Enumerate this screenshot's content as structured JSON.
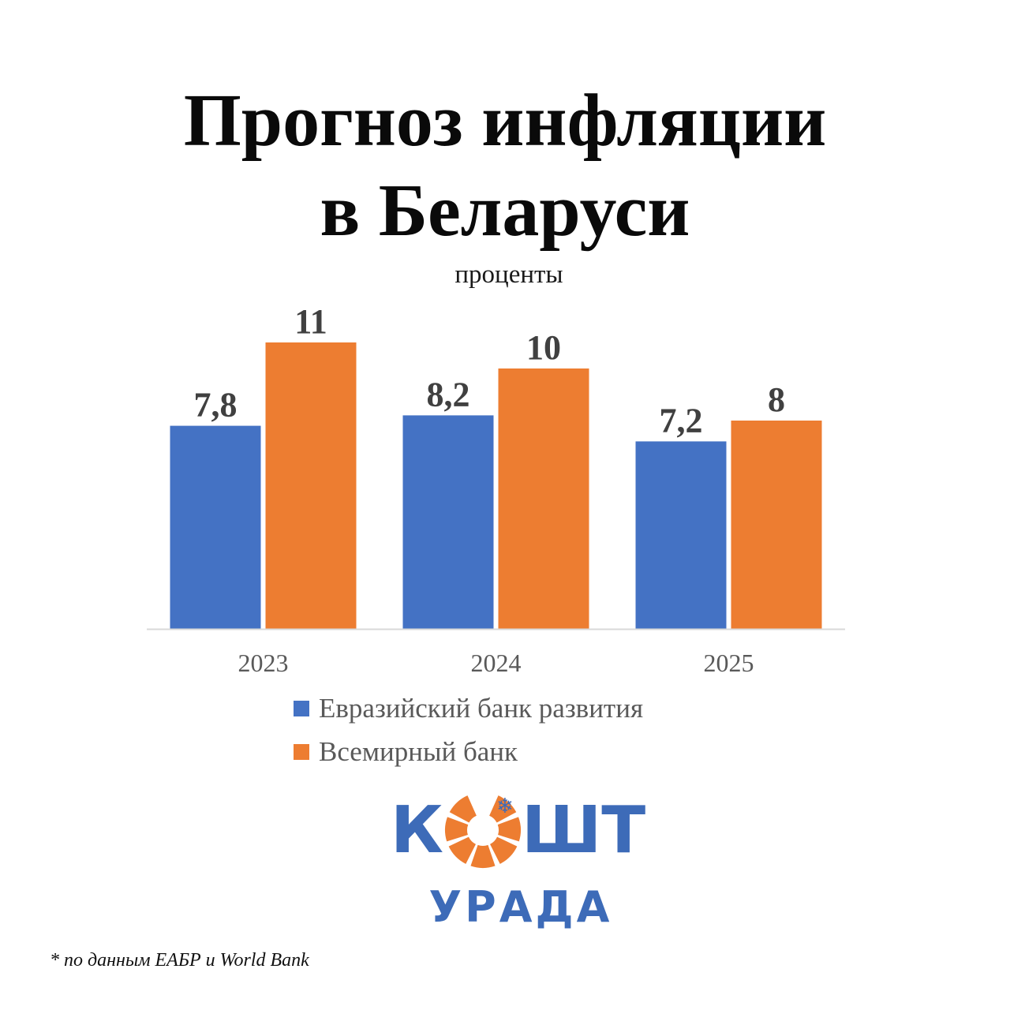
{
  "title_line1": "Прогноз инфляции",
  "title_line2": "в Беларуси",
  "subtitle": "проценты",
  "chart_data": {
    "type": "bar",
    "categories": [
      "2023",
      "2024",
      "2025"
    ],
    "series": [
      {
        "name": "Евразийский банк развития",
        "values": [
          7.8,
          8.2,
          7.2
        ],
        "labels": [
          "7,8",
          "8,2",
          "7,2"
        ],
        "color": "#4472c4"
      },
      {
        "name": "Всемирный банк",
        "values": [
          11,
          10,
          8
        ],
        "labels": [
          "11",
          "10",
          "8"
        ],
        "color": "#ed7d31"
      }
    ],
    "ylim": [
      0,
      11
    ],
    "grid": false,
    "legend": "bottom"
  },
  "logo": {
    "text_top_left": "К",
    "text_top_right": "ШТ",
    "text_bottom": "УРАДА",
    "blue": "#3d6bb8",
    "orange": "#ed7d31"
  },
  "footnote": "* по данным ЕАБР и World Bank"
}
